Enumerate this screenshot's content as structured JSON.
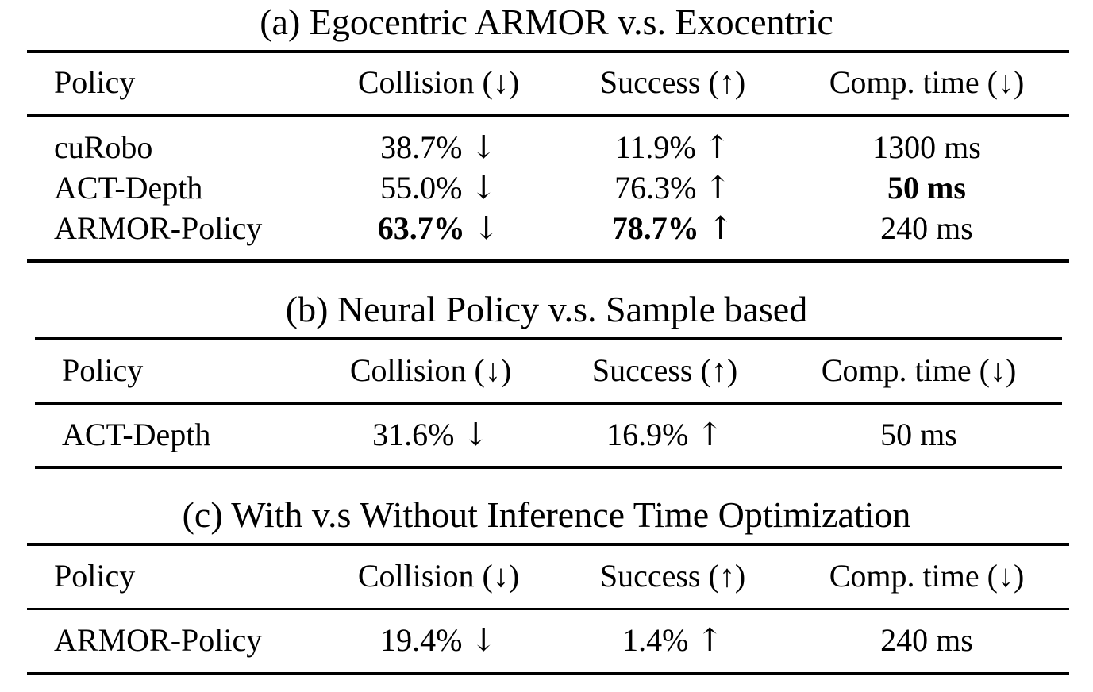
{
  "tables": [
    {
      "caption": "(a) Egocentric ARMOR v.s. Exocentric",
      "headers": [
        "Policy",
        "Collision (↓)",
        "Success (↑)",
        "Comp. time (↓)"
      ],
      "rows": [
        {
          "policy": "cuRobo",
          "collision": "38.7%",
          "collision_arrow": "↓",
          "success": "11.9%",
          "success_arrow": "↑",
          "time": "1300 ms"
        },
        {
          "policy": "ACT-Depth",
          "collision": "55.0%",
          "collision_arrow": "↓",
          "success": "76.3%",
          "success_arrow": "↑",
          "time": "50 ms"
        },
        {
          "policy": "ARMOR-Policy",
          "collision": "63.7%",
          "collision_arrow": "↓",
          "success": "78.7%",
          "success_arrow": "↑",
          "time": "240 ms"
        }
      ]
    },
    {
      "caption": "(b) Neural Policy v.s. Sample based",
      "headers": [
        "Policy",
        "Collision (↓)",
        "Success (↑)",
        "Comp. time (↓)"
      ],
      "rows": [
        {
          "policy": "ACT-Depth",
          "collision": "31.6%",
          "collision_arrow": "↓",
          "success": "16.9%",
          "success_arrow": "↑",
          "time": "50 ms"
        }
      ]
    },
    {
      "caption": "(c) With v.s Without Inference Time Optimization",
      "headers": [
        "Policy",
        "Collision (↓)",
        "Success (↑)",
        "Comp. time (↓)"
      ],
      "rows": [
        {
          "policy": "ARMOR-Policy",
          "collision": "19.4%",
          "collision_arrow": "↓",
          "success": "1.4%",
          "success_arrow": "↑",
          "time": "240 ms"
        }
      ]
    }
  ]
}
